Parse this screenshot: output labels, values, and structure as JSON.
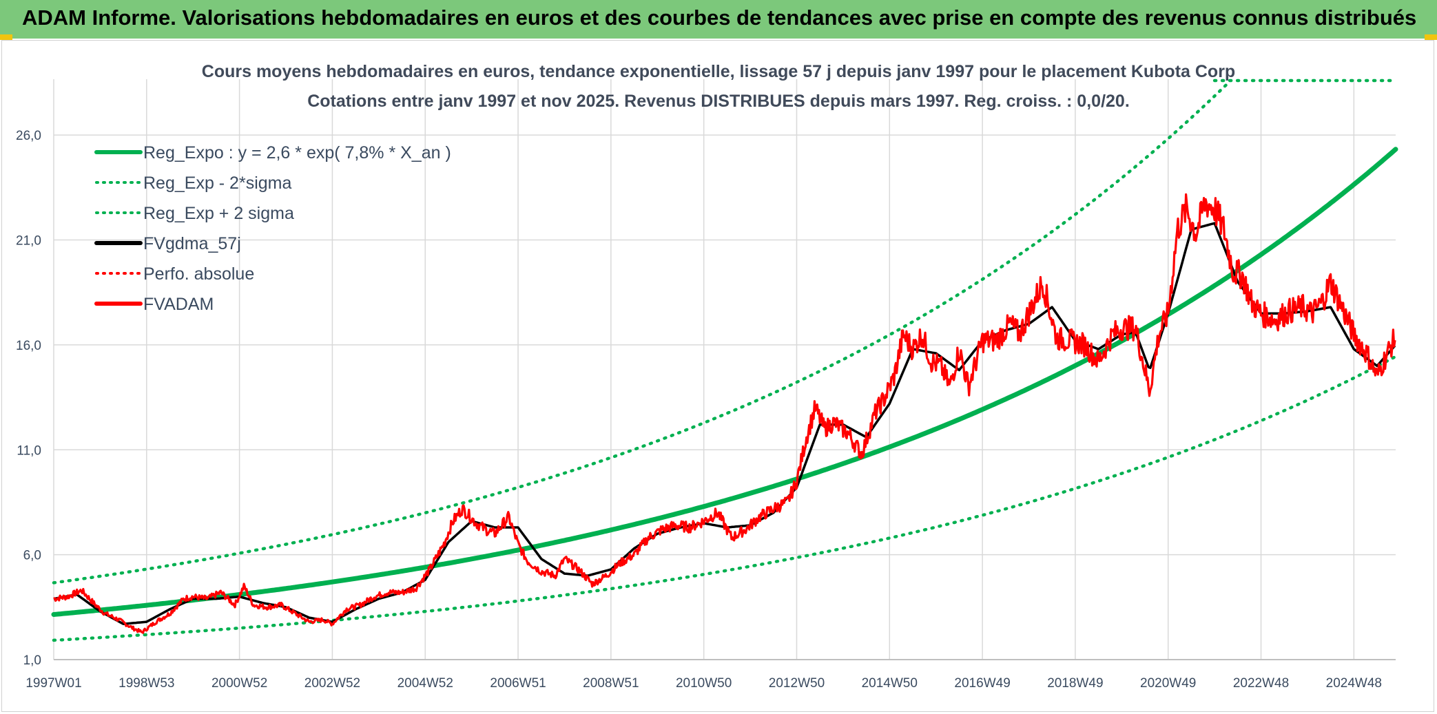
{
  "header": {
    "title": "ADAM Informe. Valorisations hebdomadaires en euros et des courbes de tendances avec prise en compte des revenus connus distribués"
  },
  "colors": {
    "header_bg": "#7cc87b",
    "reg": "#00b050",
    "fv": "#000000",
    "adam": "#ff0000",
    "grid": "#d9d9d9",
    "text": "#3a4a5f"
  },
  "chart_data": {
    "type": "line",
    "title": "Cours moyens hebdomadaires en euros, tendance exponentielle, lissage 57 j depuis janv 1997 pour le placement Kubota Corp",
    "subtitle": "Cotations entre janv 1997 et nov 2025. Revenus DISTRIBUES depuis mars 1997. Reg. croiss. : 0,0/20.",
    "xlabel": "",
    "ylabel": "",
    "xlim": [
      1997.0,
      2025.9
    ],
    "ylim": [
      1.0,
      28.5
    ],
    "yticks": [
      1,
      6,
      11,
      16,
      21,
      26
    ],
    "ytick_labels": [
      "1,0",
      "6,0",
      "11,0",
      "16,0",
      "21,0",
      "26,0"
    ],
    "xtick_labels": [
      "1997W01",
      "1998W53",
      "2000W52",
      "2002W52",
      "2004W52",
      "2006W51",
      "2008W51",
      "2010W50",
      "2012W50",
      "2014W50",
      "2016W49",
      "2018W49",
      "2020W49",
      "2022W48",
      "2024W48"
    ],
    "xtick_years": [
      1997.0,
      1999.0,
      2001.0,
      2003.0,
      2005.0,
      2007.0,
      2009.0,
      2011.0,
      2013.0,
      2015.0,
      2017.0,
      2019.0,
      2021.0,
      2023.0,
      2025.0
    ],
    "legend_position": "top-left",
    "legend": [
      {
        "label": "Reg_Expo : y = 2,6 * exp( 7,8% *  X_an )",
        "style": "solid",
        "color": "#00b050"
      },
      {
        "label": "Reg_Exp - 2*sigma",
        "style": "dotted",
        "color": "#00b050"
      },
      {
        "label": "Reg_Exp + 2 sigma",
        "style": "dotted",
        "color": "#00b050"
      },
      {
        "label": "FVgdma_57j",
        "style": "solid",
        "color": "#000000"
      },
      {
        "label": "Perfo. absolue",
        "style": "dotted",
        "color": "#ff0000"
      },
      {
        "label": "FVADAM",
        "style": "solid",
        "color": "#ff0000"
      }
    ],
    "series": [
      {
        "name": "Reg_Expo",
        "formula": "y = 2.6 * exp(0.078 * X_an)",
        "x_start": 1997.0,
        "x_end": 2025.9
      },
      {
        "name": "Reg_Exp - 2*sigma",
        "factor": 0.61
      },
      {
        "name": "Reg_Exp + 2 sigma",
        "factor": 1.48
      },
      {
        "name": "FVADAM",
        "x": [
          1997.0,
          1997.3,
          1997.6,
          1997.9,
          1998.1,
          1998.4,
          1998.7,
          1998.9,
          1999.2,
          1999.5,
          1999.8,
          2000.0,
          2000.3,
          2000.6,
          2000.9,
          2001.1,
          2001.3,
          2001.6,
          2001.9,
          2002.2,
          2002.5,
          2002.8,
          2003.0,
          2003.3,
          2003.6,
          2003.9,
          2004.2,
          2004.5,
          2004.8,
          2005.1,
          2005.4,
          2005.6,
          2005.8,
          2006.1,
          2006.3,
          2006.5,
          2006.8,
          2007.0,
          2007.2,
          2007.5,
          2007.8,
          2008.0,
          2008.3,
          2008.6,
          2008.9,
          2009.2,
          2009.5,
          2009.8,
          2010.1,
          2010.4,
          2010.7,
          2011.0,
          2011.3,
          2011.6,
          2011.9,
          2012.2,
          2012.5,
          2012.8,
          2013.0,
          2013.2,
          2013.4,
          2013.6,
          2013.8,
          2014.1,
          2014.4,
          2014.7,
          2014.9,
          2015.1,
          2015.3,
          2015.5,
          2015.7,
          2015.9,
          2016.1,
          2016.3,
          2016.5,
          2016.7,
          2017.0,
          2017.3,
          2017.6,
          2017.8,
          2018.0,
          2018.3,
          2018.6,
          2018.9,
          2019.2,
          2019.5,
          2019.8,
          2020.0,
          2020.3,
          2020.6,
          2020.8,
          2021.0,
          2021.2,
          2021.4,
          2021.6,
          2021.8,
          2022.0,
          2022.2,
          2022.4,
          2022.6,
          2022.8,
          2023.0,
          2023.3,
          2023.6,
          2023.9,
          2024.1,
          2024.3,
          2024.5,
          2024.8,
          2025.0,
          2025.3,
          2025.5,
          2025.7,
          2025.9
        ],
        "values": [
          3.9,
          4.0,
          4.3,
          3.6,
          3.2,
          2.9,
          2.5,
          2.3,
          2.8,
          3.2,
          3.9,
          4.0,
          3.9,
          4.2,
          3.6,
          4.5,
          3.6,
          3.5,
          3.6,
          3.2,
          2.8,
          2.9,
          2.7,
          3.4,
          3.6,
          4.0,
          4.2,
          4.2,
          4.4,
          5.3,
          6.5,
          7.6,
          8.2,
          7.5,
          7.2,
          7.0,
          7.8,
          6.5,
          5.7,
          5.2,
          5.0,
          5.8,
          5.3,
          4.6,
          5.0,
          5.6,
          6.0,
          6.8,
          7.2,
          7.4,
          7.3,
          7.6,
          8.0,
          6.8,
          7.2,
          7.8,
          8.2,
          8.5,
          9.5,
          11.5,
          13.0,
          12.0,
          12.3,
          11.8,
          10.8,
          12.8,
          13.5,
          14.5,
          16.5,
          15.8,
          16.5,
          15.2,
          15.0,
          14.0,
          15.8,
          14.0,
          16.2,
          16.2,
          17.0,
          16.5,
          17.5,
          19.0,
          16.3,
          16.2,
          16.0,
          15.2,
          16.5,
          16.8,
          16.8,
          13.8,
          16.5,
          17.5,
          21.5,
          22.5,
          21.3,
          22.8,
          22.5,
          21.5,
          19.5,
          19.3,
          18.0,
          17.5,
          17.2,
          17.6,
          17.8,
          17.5,
          18.0,
          19.0,
          17.5,
          16.5,
          15.5,
          14.5,
          15.5,
          16.4
        ]
      },
      {
        "name": "FVgdma_57j",
        "x": [
          1997.0,
          1997.5,
          1998.0,
          1998.5,
          1999.0,
          1999.5,
          2000.0,
          2000.5,
          2001.0,
          2001.5,
          2002.0,
          2002.5,
          2003.0,
          2003.5,
          2004.0,
          2004.5,
          2005.0,
          2005.5,
          2006.0,
          2006.5,
          2007.0,
          2007.5,
          2008.0,
          2008.5,
          2009.0,
          2009.5,
          2010.0,
          2010.5,
          2011.0,
          2011.5,
          2012.0,
          2012.5,
          2013.0,
          2013.5,
          2014.0,
          2014.5,
          2015.0,
          2015.5,
          2016.0,
          2016.5,
          2017.0,
          2017.5,
          2018.0,
          2018.5,
          2019.0,
          2019.5,
          2020.0,
          2020.3,
          2020.6,
          2021.0,
          2021.5,
          2022.0,
          2022.5,
          2023.0,
          2023.5,
          2024.0,
          2024.5,
          2025.0,
          2025.5,
          2025.9
        ],
        "values": [
          3.9,
          4.1,
          3.3,
          2.7,
          2.8,
          3.4,
          3.9,
          3.9,
          4.0,
          3.7,
          3.5,
          3.0,
          2.8,
          3.4,
          3.9,
          4.2,
          4.8,
          6.6,
          7.6,
          7.3,
          7.3,
          5.8,
          5.1,
          5.0,
          5.3,
          6.3,
          7.0,
          7.3,
          7.5,
          7.3,
          7.4,
          8.0,
          9.2,
          12.2,
          12.2,
          11.6,
          13.2,
          15.8,
          15.6,
          14.8,
          16.2,
          16.7,
          17.0,
          17.8,
          16.2,
          15.8,
          16.5,
          16.6,
          14.8,
          17.5,
          21.5,
          21.8,
          19.0,
          17.5,
          17.5,
          17.6,
          17.8,
          15.8,
          15.0,
          16.0
        ]
      }
    ]
  }
}
